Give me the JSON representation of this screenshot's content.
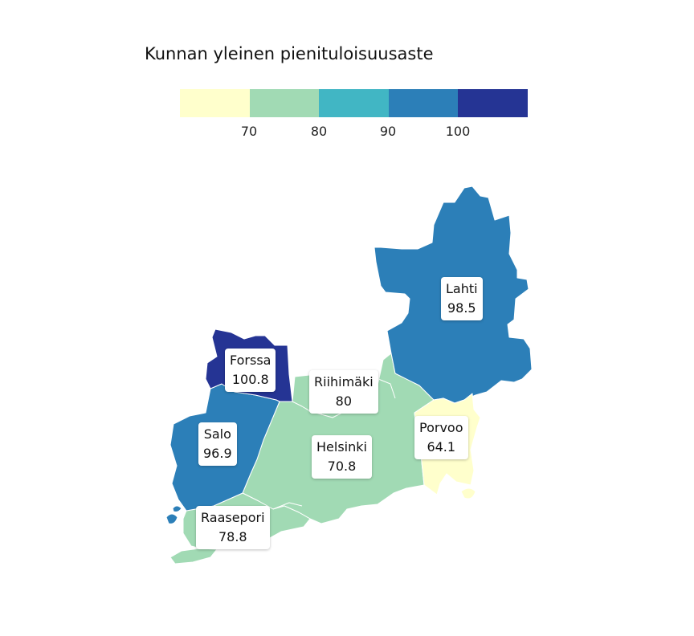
{
  "legend": {
    "title": "Kunnan yleinen pienituloisuusaste",
    "colors": [
      "#ffffcc",
      "#a1dab4",
      "#41b6c4",
      "#2c7fb8",
      "#253494"
    ],
    "ticks": [
      "70",
      "80",
      "90",
      "100"
    ]
  },
  "regions": [
    {
      "name": "Lahti",
      "value": "98.5",
      "color": "#2c7fb8"
    },
    {
      "name": "Forssa",
      "value": "100.8",
      "color": "#253494"
    },
    {
      "name": "Riihimäki",
      "value": "80",
      "color": "#a1dab4"
    },
    {
      "name": "Salo",
      "value": "96.9",
      "color": "#2c7fb8"
    },
    {
      "name": "Helsinki",
      "value": "70.8",
      "color": "#a1dab4"
    },
    {
      "name": "Porvoo",
      "value": "64.1",
      "color": "#ffffcc"
    },
    {
      "name": "Raasepori",
      "value": "78.8",
      "color": "#a1dab4"
    }
  ]
}
